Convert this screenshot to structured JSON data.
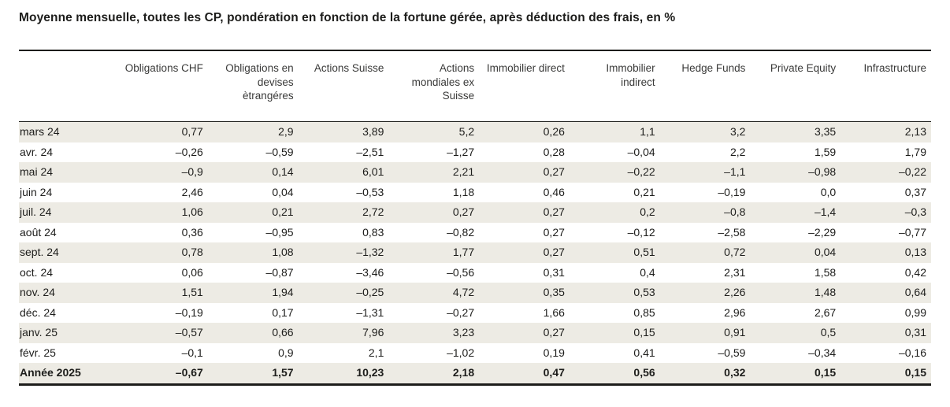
{
  "title": "Moyenne mensuelle, toutes les CP, pondération en fonction de la fortune gérée, après déduction des frais, en %",
  "table": {
    "row_header_label": "",
    "columns": [
      "Obligations CHF",
      "Obligations en devises ètrangéres",
      "Actions Suisse",
      "Actions mondiales ex Suisse",
      "Immobilier direct",
      "Immobilier indirect",
      "Hedge Funds",
      "Private Equity",
      "Infrastructure"
    ],
    "rows": [
      {
        "label": "mars 24",
        "striped": true,
        "bold": false,
        "values": [
          "0,77",
          "2,9",
          "3,89",
          "5,2",
          "0,26",
          "1,1",
          "3,2",
          "3,35",
          "2,13"
        ]
      },
      {
        "label": "avr. 24",
        "striped": false,
        "bold": false,
        "values": [
          "–0,26",
          "–0,59",
          "–2,51",
          "–1,27",
          "0,28",
          "–0,04",
          "2,2",
          "1,59",
          "1,79"
        ]
      },
      {
        "label": "mai 24",
        "striped": true,
        "bold": false,
        "values": [
          "–0,9",
          "0,14",
          "6,01",
          "2,21",
          "0,27",
          "–0,22",
          "–1,1",
          "–0,98",
          "–0,22"
        ]
      },
      {
        "label": "juin 24",
        "striped": false,
        "bold": false,
        "values": [
          "2,46",
          "0,04",
          "–0,53",
          "1,18",
          "0,46",
          "0,21",
          "–0,19",
          "0,0",
          "0,37"
        ]
      },
      {
        "label": "juil. 24",
        "striped": true,
        "bold": false,
        "values": [
          "1,06",
          "0,21",
          "2,72",
          "0,27",
          "0,27",
          "0,2",
          "–0,8",
          "–1,4",
          "–0,3"
        ]
      },
      {
        "label": "août 24",
        "striped": false,
        "bold": false,
        "values": [
          "0,36",
          "–0,95",
          "0,83",
          "–0,82",
          "0,27",
          "–0,12",
          "–2,58",
          "–2,29",
          "–0,77"
        ]
      },
      {
        "label": "sept. 24",
        "striped": true,
        "bold": false,
        "values": [
          "0,78",
          "1,08",
          "–1,32",
          "1,77",
          "0,27",
          "0,51",
          "0,72",
          "0,04",
          "0,13"
        ]
      },
      {
        "label": "oct. 24",
        "striped": false,
        "bold": false,
        "values": [
          "0,06",
          "–0,87",
          "–3,46",
          "–0,56",
          "0,31",
          "0,4",
          "2,31",
          "1,58",
          "0,42"
        ]
      },
      {
        "label": "nov. 24",
        "striped": true,
        "bold": false,
        "values": [
          "1,51",
          "1,94",
          "–0,25",
          "4,72",
          "0,35",
          "0,53",
          "2,26",
          "1,48",
          "0,64"
        ]
      },
      {
        "label": "déc. 24",
        "striped": false,
        "bold": false,
        "values": [
          "–0,19",
          "0,17",
          "–1,31",
          "–0,27",
          "1,66",
          "0,85",
          "2,96",
          "2,67",
          "0,99"
        ]
      },
      {
        "label": "janv. 25",
        "striped": true,
        "bold": false,
        "values": [
          "–0,57",
          "0,66",
          "7,96",
          "3,23",
          "0,27",
          "0,15",
          "0,91",
          "0,5",
          "0,31"
        ]
      },
      {
        "label": "févr. 25",
        "striped": false,
        "bold": false,
        "values": [
          "–0,1",
          "0,9",
          "2,1",
          "–1,02",
          "0,19",
          "0,41",
          "–0,59",
          "–0,34",
          "–0,16"
        ]
      },
      {
        "label": "Année 2025",
        "striped": true,
        "bold": true,
        "values": [
          "–0,67",
          "1,57",
          "10,23",
          "2,18",
          "0,47",
          "0,56",
          "0,32",
          "0,15",
          "0,15"
        ]
      }
    ]
  },
  "chart_data": {
    "type": "table",
    "title": "Moyenne mensuelle, toutes les CP, pondération en fonction de la fortune gérée, après déduction des frais, en %",
    "categories": [
      "mars 24",
      "avr. 24",
      "mai 24",
      "juin 24",
      "juil. 24",
      "août 24",
      "sept. 24",
      "oct. 24",
      "nov. 24",
      "déc. 24",
      "janv. 25",
      "févr. 25",
      "Année 2025"
    ],
    "series": [
      {
        "name": "Obligations CHF",
        "values": [
          0.77,
          -0.26,
          -0.9,
          2.46,
          1.06,
          0.36,
          0.78,
          0.06,
          1.51,
          -0.19,
          -0.57,
          -0.1,
          -0.67
        ]
      },
      {
        "name": "Obligations en devises ètrangéres",
        "values": [
          2.9,
          -0.59,
          0.14,
          0.04,
          0.21,
          -0.95,
          1.08,
          -0.87,
          1.94,
          0.17,
          0.66,
          0.9,
          1.57
        ]
      },
      {
        "name": "Actions Suisse",
        "values": [
          3.89,
          -2.51,
          6.01,
          -0.53,
          2.72,
          0.83,
          -1.32,
          -3.46,
          -0.25,
          -1.31,
          7.96,
          2.1,
          10.23
        ]
      },
      {
        "name": "Actions mondiales ex Suisse",
        "values": [
          5.2,
          -1.27,
          2.21,
          1.18,
          0.27,
          -0.82,
          1.77,
          -0.56,
          4.72,
          -0.27,
          3.23,
          -1.02,
          2.18
        ]
      },
      {
        "name": "Immobilier direct",
        "values": [
          0.26,
          0.28,
          0.27,
          0.46,
          0.27,
          0.27,
          0.27,
          0.31,
          0.35,
          1.66,
          0.27,
          0.19,
          0.47
        ]
      },
      {
        "name": "Immobilier indirect",
        "values": [
          1.1,
          -0.04,
          -0.22,
          0.21,
          0.2,
          -0.12,
          0.51,
          0.4,
          0.53,
          0.85,
          0.15,
          0.41,
          0.56
        ]
      },
      {
        "name": "Hedge Funds",
        "values": [
          3.2,
          2.2,
          -1.1,
          -0.19,
          -0.8,
          -2.58,
          0.72,
          2.31,
          2.26,
          2.96,
          0.91,
          -0.59,
          0.32
        ]
      },
      {
        "name": "Private Equity",
        "values": [
          3.35,
          1.59,
          -0.98,
          0.0,
          -1.4,
          -2.29,
          0.04,
          1.58,
          1.48,
          2.67,
          0.5,
          -0.34,
          0.15
        ]
      },
      {
        "name": "Infrastructure",
        "values": [
          2.13,
          1.79,
          -0.22,
          0.37,
          -0.3,
          -0.77,
          0.13,
          0.42,
          0.64,
          0.99,
          0.31,
          -0.16,
          0.15
        ]
      }
    ]
  },
  "colors": {
    "stripe": "#edebe4",
    "rule": "#1d1d1b",
    "text": "#1d1d1b"
  }
}
